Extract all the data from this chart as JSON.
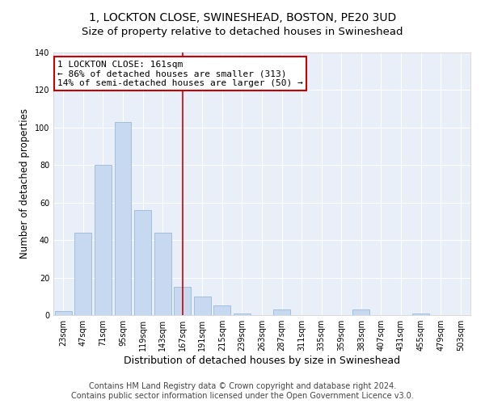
{
  "title": "1, LOCKTON CLOSE, SWINESHEAD, BOSTON, PE20 3UD",
  "subtitle": "Size of property relative to detached houses in Swineshead",
  "xlabel": "Distribution of detached houses by size in Swineshead",
  "ylabel": "Number of detached properties",
  "bar_labels": [
    "23sqm",
    "47sqm",
    "71sqm",
    "95sqm",
    "119sqm",
    "143sqm",
    "167sqm",
    "191sqm",
    "215sqm",
    "239sqm",
    "263sqm",
    "287sqm",
    "311sqm",
    "335sqm",
    "359sqm",
    "383sqm",
    "407sqm",
    "431sqm",
    "455sqm",
    "479sqm",
    "503sqm"
  ],
  "bar_values": [
    2,
    44,
    80,
    103,
    56,
    44,
    15,
    10,
    5,
    1,
    0,
    3,
    0,
    0,
    0,
    3,
    0,
    0,
    1,
    0,
    0
  ],
  "bar_color": "#c6d9f0",
  "bar_edgecolor": "#9ab8d8",
  "vline_x": 6,
  "vline_color": "#cc0000",
  "annotation_text": "1 LOCKTON CLOSE: 161sqm\n← 86% of detached houses are smaller (313)\n14% of semi-detached houses are larger (50) →",
  "annotation_box_color": "#ffffff",
  "annotation_box_edgecolor": "#cc0000",
  "ylim": [
    0,
    140
  ],
  "yticks": [
    0,
    20,
    40,
    60,
    80,
    100,
    120,
    140
  ],
  "bg_color": "#e8eff8",
  "footer_text": "Contains HM Land Registry data © Crown copyright and database right 2024.\nContains public sector information licensed under the Open Government Licence v3.0.",
  "title_fontsize": 10,
  "subtitle_fontsize": 9.5,
  "xlabel_fontsize": 9,
  "ylabel_fontsize": 8.5,
  "tick_fontsize": 7,
  "annotation_fontsize": 8,
  "footer_fontsize": 7
}
